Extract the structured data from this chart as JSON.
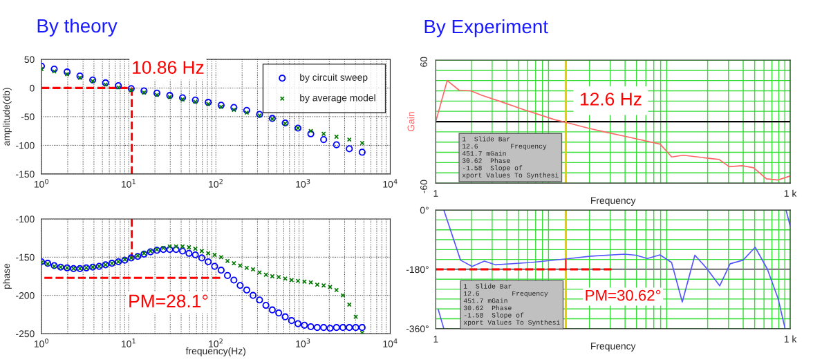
{
  "chart_data": [
    {
      "type": "scatter",
      "title": "By theory",
      "ylabel": "amplitude(db)",
      "log": "x",
      "grid": true,
      "legend": "top right",
      "xlim": [
        1,
        10000
      ],
      "ylim": [
        -150,
        50
      ],
      "xticks": [
        {
          "value": 1,
          "label": "10$^{0}$"
        },
        {
          "value": 10,
          "label": "10$^{1}$"
        },
        {
          "value": 100,
          "label": "10$^{2}$"
        },
        {
          "value": 1000,
          "label": "10$^{3}$"
        },
        {
          "value": 10000,
          "label": "10$^{4}$"
        }
      ],
      "yticks": [
        -150,
        -100,
        -50,
        0,
        50
      ],
      "series": [
        {
          "name": "by circuit sweep",
          "color": "#0000ff",
          "marker": "circle",
          "x": [
            1,
            1.4,
            1.97,
            2.76,
            3.87,
            5.43,
            7.62,
            10.7,
            15.0,
            21.1,
            29.6,
            41.5,
            58.2,
            81.7,
            115,
            161,
            226,
            317,
            444,
            624,
            875,
            1228,
            1723,
            2418,
            3393,
            4762
          ],
          "values": [
            38,
            33,
            28,
            21,
            14,
            9,
            4,
            -1,
            -5,
            -9,
            -13,
            -17,
            -21,
            -25,
            -30,
            -34,
            -39,
            -46,
            -53,
            -61,
            -70,
            -80,
            -90,
            -99,
            -106,
            -112
          ]
        },
        {
          "name": "by average model",
          "color": "#007700",
          "marker": "cross",
          "x": [
            1,
            1.4,
            1.97,
            2.76,
            3.87,
            5.43,
            7.62,
            10.7,
            15.0,
            21.1,
            29.6,
            41.5,
            58.2,
            81.7,
            115,
            161,
            226,
            317,
            444,
            624,
            875,
            1228,
            1723,
            2418,
            3393,
            4762
          ],
          "values": [
            33,
            29,
            24,
            18,
            12,
            6,
            1,
            -4,
            -8,
            -12,
            -16,
            -20,
            -24,
            -28,
            -33,
            -38,
            -43,
            -48,
            -54,
            -62,
            -70,
            -75,
            -80,
            -85,
            -90,
            -96
          ]
        },
        {
          "type": "line",
          "color": "#ff0000",
          "line_style": "dashed",
          "x": [
            1,
            10.86
          ],
          "values": [
            0,
            0
          ]
        },
        {
          "type": "line",
          "color": "#ff0000",
          "line_style": "dashed",
          "x": [
            10.86,
            10.86
          ],
          "values": [
            0,
            -150
          ]
        }
      ],
      "annotations": [
        "10.86 Hz"
      ]
    },
    {
      "type": "scatter",
      "xlabel": "frequency(Hz)",
      "ylabel": "phase",
      "log": "x",
      "grid": true,
      "xlim": [
        1,
        10000
      ],
      "ylim": [
        -250,
        -100
      ],
      "xticks": [
        {
          "value": 1,
          "label": "10$^{0}$"
        },
        {
          "value": 10,
          "label": "10$^{1}$"
        },
        {
          "value": 100,
          "label": "10$^{2}$"
        },
        {
          "value": 1000,
          "label": "10$^{3}$"
        },
        {
          "value": 10000,
          "label": "10$^{4}$"
        }
      ],
      "yticks": [
        -250,
        -200,
        -150,
        -100
      ],
      "series": [
        {
          "color": "#0000ff",
          "marker": "circle",
          "x": [
            1,
            1.18,
            1.4,
            1.66,
            1.97,
            2.33,
            2.76,
            3.27,
            3.87,
            4.59,
            5.43,
            6.43,
            7.62,
            9.03,
            10.7,
            12.7,
            15.0,
            17.8,
            21.1,
            25.0,
            29.6,
            35.0,
            41.5,
            49.2,
            58.2,
            69.0,
            81.7,
            96.8,
            115,
            136,
            161,
            190,
            226,
            267,
            317,
            375,
            444,
            526,
            624,
            739,
            875,
            1037,
            1228,
            1455,
            1723,
            2041,
            2418,
            2865,
            3393,
            4020,
            4762
          ],
          "values": [
            -156,
            -158,
            -161,
            -163,
            -164,
            -165,
            -165,
            -164,
            -163,
            -162,
            -160,
            -158,
            -156,
            -154,
            -151,
            -149,
            -146,
            -143,
            -141,
            -140,
            -140,
            -140,
            -142,
            -145,
            -147,
            -151,
            -156,
            -162,
            -167,
            -174,
            -180,
            -187,
            -193,
            -200,
            -206,
            -213,
            -219,
            -223,
            -228,
            -233,
            -237,
            -239,
            -241,
            -242,
            -242,
            -243,
            -242,
            -242,
            -242,
            -242,
            -242
          ]
        },
        {
          "color": "#007700",
          "marker": "cross",
          "x": [
            1,
            1.18,
            1.4,
            1.66,
            1.97,
            2.33,
            2.76,
            3.27,
            3.87,
            4.59,
            5.43,
            6.43,
            7.62,
            9.03,
            10.7,
            12.7,
            15.0,
            17.8,
            21.1,
            25.0,
            29.6,
            35.0,
            41.5,
            49.2,
            58.2,
            69.0,
            81.7,
            96.8,
            115,
            136,
            161,
            190,
            226,
            267,
            317,
            375,
            444,
            526,
            624,
            739,
            875,
            1037,
            1228,
            1455,
            1723,
            2041,
            2418,
            2865,
            3393,
            4020,
            4762
          ],
          "values": [
            -157,
            -159,
            -162,
            -163,
            -164,
            -165,
            -165,
            -164,
            -163,
            -162,
            -160,
            -158,
            -156,
            -153,
            -151,
            -148,
            -145,
            -142,
            -140,
            -138,
            -136,
            -136,
            -136,
            -137,
            -139,
            -142,
            -145,
            -147,
            -150,
            -155,
            -158,
            -161,
            -164,
            -166,
            -170,
            -173,
            -175,
            -176,
            -178,
            -180,
            -181,
            -182,
            -183,
            -186,
            -187,
            -189,
            -193,
            -200,
            -212,
            -228,
            -249
          ]
        },
        {
          "type": "line",
          "color": "#ff0000",
          "line_style": "dashed",
          "x": [
            112,
            1
          ],
          "values": [
            -177,
            -177
          ]
        },
        {
          "type": "line",
          "color": "#ff0000",
          "line_style": "dashed",
          "x": [
            10.86,
            10.86
          ],
          "values": [
            -100,
            -152
          ]
        }
      ],
      "annotations": [
        "PM=28.1°"
      ]
    },
    {
      "type": "line",
      "title": "By Experiment",
      "xlabel": "Frequency",
      "ylabel": "Gain",
      "log": "x",
      "grid": true,
      "xlim": [
        1,
        1000
      ],
      "ylim": [
        -60,
        60
      ],
      "xticks": [
        {
          "value": 1,
          "label": "1"
        },
        {
          "value": 1000,
          "label": "1 k"
        }
      ],
      "yticks": [
        -60,
        {
          "value": -50,
          "label": null
        },
        {
          "value": -40,
          "label": null
        },
        {
          "value": -30,
          "label": null
        },
        {
          "value": -20,
          "label": null
        },
        {
          "value": -10,
          "label": null
        },
        {
          "value": 0,
          "label": null
        },
        {
          "value": 10,
          "label": null
        },
        {
          "value": 20,
          "label": null
        },
        {
          "value": 30,
          "label": null
        },
        {
          "value": 40,
          "label": null
        },
        {
          "value": 50,
          "label": null
        },
        60
      ],
      "series": [
        {
          "color": "#ff6666",
          "x": [
            1,
            1.25,
            1.58,
            1.98,
            2.48,
            3.69,
            5.5,
            10.2,
            12.7,
            19.2,
            27.1,
            40.3,
            79.2,
            99.3,
            124,
            250,
            305,
            392,
            490,
            629,
            787,
            1000
          ],
          "values": [
            0,
            40,
            30.5,
            30,
            25.5,
            18.8,
            11.8,
            1.8,
            -0.8,
            -6.2,
            -10.2,
            -14.5,
            -22,
            -34.5,
            -32.8,
            -37,
            -44,
            -43,
            -45,
            -55.8,
            -57,
            -53
          ]
        }
      ],
      "ref_lines": [
        {
          "axis": "y",
          "value": 0,
          "color": "#000000"
        },
        {
          "axis": "x",
          "value": 12.6,
          "color": "#e0d000"
        }
      ],
      "annotations": [
        "12.6 Hz",
        "1  Slide Bar\n12.6        Frequency\n451.7 mGain\n30.62  Phase\n-1.58  Slope of\nxport Values To Synthesi"
      ]
    },
    {
      "type": "line",
      "xlabel": "Frequency",
      "log": "x",
      "grid": true,
      "xlim": [
        1,
        1000
      ],
      "ylim": [
        -360,
        0
      ],
      "xticks": [
        {
          "value": 1,
          "label": "1"
        },
        {
          "value": 1000,
          "label": "1 k"
        }
      ],
      "yticks": [
        {
          "value": -360,
          "label": "-360°"
        },
        {
          "value": -330,
          "label": null
        },
        {
          "value": -300,
          "label": null
        },
        {
          "value": -270,
          "label": null
        },
        {
          "value": -240,
          "label": null
        },
        {
          "value": -210,
          "label": null
        },
        {
          "value": -180,
          "label": "-180°"
        },
        {
          "value": -150,
          "label": null
        },
        {
          "value": -120,
          "label": null
        },
        {
          "value": -90,
          "label": null
        },
        {
          "value": -60,
          "label": null
        },
        {
          "value": -30,
          "label": null
        },
        {
          "value": 0,
          "label": "0°"
        }
      ],
      "series": [
        {
          "color": "#5555ff",
          "x": [
            1.05,
            1.17
          ],
          "values": [
            -302,
            -360
          ]
        },
        {
          "color": "#5555ff",
          "x": [
            1.17,
            1.62,
            2.03,
            2.58,
            3.18,
            6.4,
            12.8,
            20.6,
            39.5,
            49.4,
            61.8,
            79,
            99,
            122,
            156,
            193,
            253,
            310,
            399,
            505,
            640,
            790,
            905
          ],
          "values": [
            0,
            -152,
            -171,
            -155,
            -166,
            -159,
            -148,
            -140,
            -134,
            -137,
            -147,
            -136,
            -159,
            -279,
            -137,
            -174,
            -230,
            -163,
            -152,
            -113,
            -179,
            -269,
            -360
          ]
        },
        {
          "color": "#5555ff",
          "x": [
            921,
            1000
          ],
          "values": [
            0,
            -49
          ]
        },
        {
          "color": "#ff0000",
          "line_style": "dashed",
          "x": [
            1,
            31.5
          ],
          "values": [
            -180,
            -180
          ]
        },
        {
          "color": "#ff0000",
          "x": [
            12.6,
            12.6
          ],
          "values": [
            -180,
            -150
          ]
        }
      ],
      "ref_lines": [
        {
          "axis": "y",
          "value": -180,
          "color": "#808080"
        },
        {
          "axis": "x",
          "value": 12.6,
          "color": "#e0d000"
        }
      ],
      "annotations": [
        "PM=30.62°",
        "1  Slide Bar\n12.6        Frequency\n451.7 mGain\n30.62  Phase\n-1.58  Slope of\nxport Values To Synthesi"
      ]
    }
  ]
}
